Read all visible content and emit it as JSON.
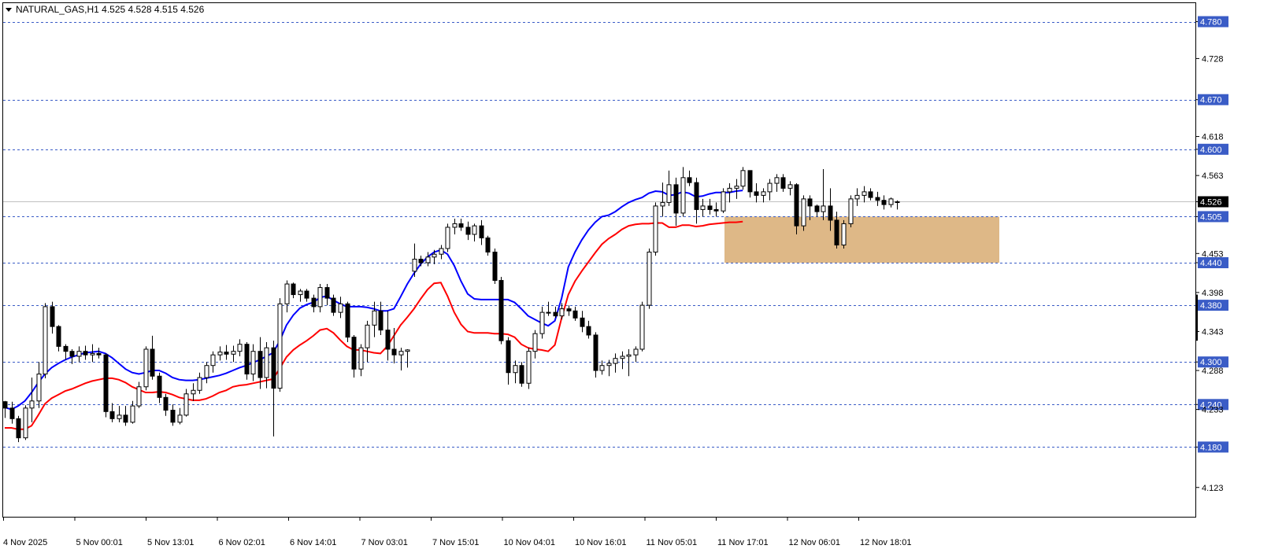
{
  "header": {
    "title": "NATURAL_GAS,H1  4.525 4.528 4.515 4.526"
  },
  "chart_data": {
    "type": "candlestick",
    "symbol": "NATURAL_GAS",
    "timeframe": "H1",
    "ohlc_header": [
      4.525,
      4.528,
      4.515,
      4.526
    ],
    "ylim": [
      4.095,
      4.805
    ],
    "y_ticks": [
      4.78,
      4.728,
      4.67,
      4.618,
      4.6,
      4.563,
      4.526,
      4.505,
      4.453,
      4.44,
      4.398,
      4.38,
      4.343,
      4.3,
      4.288,
      4.24,
      4.233,
      4.18,
      4.123
    ],
    "y_tick_labels": [
      "4.780",
      "4.728",
      "4.670",
      "4.618",
      "4.600",
      "4.563",
      "4.526",
      "4.505",
      "4.453",
      "4.440",
      "4.398",
      "4.380",
      "4.343",
      "4.300",
      "4.288",
      "4.240",
      "4.233",
      "4.180",
      "4.123"
    ],
    "x_tick_labels": [
      "4 Nov 2025",
      "5 Nov 00:01",
      "5 Nov 13:01",
      "6 Nov 02:01",
      "6 Nov 14:01",
      "7 Nov 03:01",
      "7 Nov 15:01",
      "10 Nov 04:01",
      "10 Nov 16:01",
      "11 Nov 05:01",
      "11 Nov 17:01",
      "12 Nov 06:01",
      "12 Nov 18:01"
    ],
    "horizontal_levels": [
      {
        "value": 4.78,
        "label": "4.780"
      },
      {
        "value": 4.67,
        "label": "4.670"
      },
      {
        "value": 4.6,
        "label": "4.600"
      },
      {
        "value": 4.505,
        "label": "4.505"
      },
      {
        "value": 4.44,
        "label": "4.440"
      },
      {
        "value": 4.38,
        "label": "4.380"
      },
      {
        "value": 4.3,
        "label": "4.300"
      },
      {
        "value": 4.24,
        "label": "4.240"
      },
      {
        "value": 4.18,
        "label": "4.180"
      }
    ],
    "current_price": {
      "value": 4.526,
      "label": "4.526"
    },
    "zone": {
      "from": 4.44,
      "to": 4.505,
      "color": "#deb887"
    },
    "ma_series": [
      {
        "color": "#0000ff",
        "values": [
          4.236,
          4.233,
          4.238,
          4.245,
          4.257,
          4.271,
          4.283,
          4.292,
          4.298,
          4.303,
          4.307,
          4.31,
          4.313,
          4.314,
          4.315,
          4.312,
          4.306,
          4.298,
          4.29,
          4.285,
          4.283,
          4.285,
          4.288,
          4.288,
          4.284,
          4.278,
          4.275,
          4.274,
          4.274,
          4.275,
          4.277,
          4.279,
          4.281,
          4.284,
          4.288,
          4.292,
          4.295,
          4.299,
          4.303,
          4.308,
          4.313,
          4.33,
          4.352,
          4.366,
          4.376,
          4.381,
          4.384,
          4.391,
          4.393,
          4.387,
          4.382,
          4.378,
          4.378,
          4.378,
          4.377,
          4.375,
          4.372,
          4.372,
          4.375,
          4.392,
          4.41,
          4.425,
          4.438,
          4.448,
          4.455,
          4.458,
          4.452,
          4.436,
          4.414,
          4.396,
          4.389,
          4.388,
          4.388,
          4.388,
          4.388,
          4.388,
          4.384,
          4.375,
          4.365,
          4.36,
          4.355,
          4.351,
          4.358,
          4.39,
          4.434,
          4.455,
          4.472,
          4.486,
          4.497,
          4.505,
          4.507,
          4.512,
          4.519,
          4.525,
          4.529,
          4.532,
          4.538,
          4.541,
          4.54,
          4.535,
          4.536,
          4.54,
          4.538,
          4.533,
          4.534,
          4.537,
          4.539,
          4.539,
          4.539,
          4.541,
          4.542
        ]
      },
      {
        "color": "#ff0000",
        "values": [
          4.207,
          4.207,
          4.205,
          4.205,
          4.21,
          4.225,
          4.241,
          4.249,
          4.254,
          4.259,
          4.262,
          4.266,
          4.27,
          4.273,
          4.275,
          4.277,
          4.277,
          4.275,
          4.271,
          4.265,
          4.261,
          4.257,
          4.257,
          4.258,
          4.257,
          4.254,
          4.25,
          4.248,
          4.246,
          4.246,
          4.248,
          4.252,
          4.257,
          4.26,
          4.265,
          4.267,
          4.268,
          4.27,
          4.272,
          4.274,
          4.276,
          4.291,
          4.307,
          4.317,
          4.324,
          4.33,
          4.337,
          4.345,
          4.347,
          4.341,
          4.331,
          4.322,
          4.317,
          4.317,
          4.315,
          4.313,
          4.312,
          4.322,
          4.337,
          4.352,
          4.363,
          4.375,
          4.389,
          4.402,
          4.411,
          4.412,
          4.393,
          4.37,
          4.353,
          4.343,
          4.341,
          4.341,
          4.341,
          4.34,
          4.34,
          4.339,
          4.335,
          4.325,
          4.32,
          4.318,
          4.317,
          4.315,
          4.324,
          4.362,
          4.395,
          4.414,
          4.428,
          4.441,
          4.454,
          4.466,
          4.474,
          4.48,
          4.487,
          4.492,
          4.494,
          4.495,
          4.495,
          4.496,
          4.496,
          4.49,
          4.49,
          4.493,
          4.493,
          4.491,
          4.492,
          4.494,
          4.495,
          4.496,
          4.497,
          4.497,
          4.498
        ]
      }
    ],
    "candles": [
      [
        4.244,
        4.245,
        4.221,
        4.235
      ],
      [
        4.235,
        4.244,
        4.213,
        4.22
      ],
      [
        4.22,
        4.224,
        4.187,
        4.193
      ],
      [
        4.193,
        4.239,
        4.19,
        4.235
      ],
      [
        4.235,
        4.278,
        4.215,
        4.245
      ],
      [
        4.245,
        4.3,
        4.235,
        4.283
      ],
      [
        4.283,
        4.383,
        4.277,
        4.378
      ],
      [
        4.378,
        4.385,
        4.34,
        4.35
      ],
      [
        4.35,
        4.352,
        4.315,
        4.322
      ],
      [
        4.322,
        4.325,
        4.303,
        4.315
      ],
      [
        4.315,
        4.318,
        4.297,
        4.308
      ],
      [
        4.308,
        4.322,
        4.3,
        4.315
      ],
      [
        4.315,
        4.323,
        4.303,
        4.31
      ],
      [
        4.31,
        4.325,
        4.3,
        4.312
      ],
      [
        4.312,
        4.32,
        4.305,
        4.31
      ],
      [
        4.31,
        4.312,
        4.222,
        4.23
      ],
      [
        4.23,
        4.242,
        4.215,
        4.22
      ],
      [
        4.22,
        4.238,
        4.215,
        4.225
      ],
      [
        4.225,
        4.238,
        4.21,
        4.215
      ],
      [
        4.215,
        4.245,
        4.213,
        4.238
      ],
      [
        4.238,
        4.272,
        4.235,
        4.265
      ],
      [
        4.265,
        4.322,
        4.26,
        4.318
      ],
      [
        4.318,
        4.337,
        4.275,
        4.28
      ],
      [
        4.28,
        4.285,
        4.242,
        4.25
      ],
      [
        4.25,
        4.255,
        4.224,
        4.232
      ],
      [
        4.232,
        4.24,
        4.21,
        4.215
      ],
      [
        4.215,
        4.235,
        4.212,
        4.225
      ],
      [
        4.225,
        4.262,
        4.223,
        4.255
      ],
      [
        4.255,
        4.27,
        4.245,
        4.26
      ],
      [
        4.26,
        4.285,
        4.255,
        4.278
      ],
      [
        4.278,
        4.3,
        4.27,
        4.295
      ],
      [
        4.295,
        4.315,
        4.285,
        4.31
      ],
      [
        4.31,
        4.322,
        4.302,
        4.314
      ],
      [
        4.314,
        4.324,
        4.303,
        4.311
      ],
      [
        4.311,
        4.323,
        4.3,
        4.315
      ],
      [
        4.315,
        4.332,
        4.308,
        4.325
      ],
      [
        4.325,
        4.328,
        4.275,
        4.283
      ],
      [
        4.283,
        4.325,
        4.273,
        4.315
      ],
      [
        4.315,
        4.335,
        4.262,
        4.278
      ],
      [
        4.278,
        4.328,
        4.263,
        4.32
      ],
      [
        4.32,
        4.33,
        4.195,
        4.263
      ],
      [
        4.263,
        4.39,
        4.258,
        4.382
      ],
      [
        4.382,
        4.415,
        4.37,
        4.41
      ],
      [
        4.41,
        4.412,
        4.39,
        4.395
      ],
      [
        4.395,
        4.403,
        4.385,
        4.4
      ],
      [
        4.4,
        4.403,
        4.385,
        4.39
      ],
      [
        4.39,
        4.395,
        4.37,
        4.378
      ],
      [
        4.378,
        4.41,
        4.37,
        4.405
      ],
      [
        4.405,
        4.41,
        4.38,
        4.39
      ],
      [
        4.39,
        4.395,
        4.365,
        4.37
      ],
      [
        4.37,
        4.392,
        4.362,
        4.382
      ],
      [
        4.382,
        4.385,
        4.328,
        4.335
      ],
      [
        4.335,
        4.338,
        4.278,
        4.29
      ],
      [
        4.29,
        4.325,
        4.28,
        4.32
      ],
      [
        4.32,
        4.358,
        4.3,
        4.352
      ],
      [
        4.352,
        4.385,
        4.335,
        4.372
      ],
      [
        4.372,
        4.385,
        4.338,
        4.345
      ],
      [
        4.345,
        4.372,
        4.302,
        4.318
      ],
      [
        4.318,
        4.348,
        4.298,
        4.31
      ],
      [
        4.31,
        4.32,
        4.288,
        4.315
      ],
      [
        4.315,
        4.318,
        4.292,
        4.317
      ],
      [
        4.428,
        4.467,
        4.42,
        4.445
      ],
      [
        4.445,
        4.45,
        4.435,
        4.44
      ],
      [
        4.44,
        4.455,
        4.435,
        4.448
      ],
      [
        4.448,
        4.458,
        4.438,
        4.452
      ],
      [
        4.452,
        4.465,
        4.445,
        4.46
      ],
      [
        4.46,
        4.495,
        4.455,
        4.49
      ],
      [
        4.49,
        4.502,
        4.48,
        4.495
      ],
      [
        4.495,
        4.502,
        4.485,
        4.49
      ],
      [
        4.49,
        4.498,
        4.472,
        4.48
      ],
      [
        4.48,
        4.495,
        4.47,
        4.492
      ],
      [
        4.492,
        4.5,
        4.465,
        4.475
      ],
      [
        4.475,
        4.478,
        4.45,
        4.455
      ],
      [
        4.455,
        4.46,
        4.41,
        4.415
      ],
      [
        4.415,
        4.42,
        4.325,
        4.33
      ],
      [
        4.33,
        4.335,
        4.268,
        4.285
      ],
      [
        4.285,
        4.302,
        4.27,
        4.295
      ],
      [
        4.295,
        4.3,
        4.265,
        4.27
      ],
      [
        4.27,
        4.32,
        4.262,
        4.315
      ],
      [
        4.315,
        4.345,
        4.305,
        4.34
      ],
      [
        4.34,
        4.378,
        4.333,
        4.37
      ],
      [
        4.37,
        4.385,
        4.365,
        4.37
      ],
      [
        4.37,
        4.378,
        4.362,
        4.365
      ],
      [
        4.365,
        4.383,
        4.36,
        4.375
      ],
      [
        4.375,
        4.38,
        4.365,
        4.372
      ],
      [
        4.372,
        4.378,
        4.358,
        4.362
      ],
      [
        4.362,
        4.372,
        4.342,
        4.35
      ],
      [
        4.35,
        4.358,
        4.333,
        4.338
      ],
      [
        4.338,
        4.342,
        4.278,
        4.288
      ],
      [
        4.288,
        4.302,
        4.282,
        4.295
      ],
      [
        4.295,
        4.303,
        4.28,
        4.298
      ],
      [
        4.298,
        4.312,
        4.285,
        4.305
      ],
      [
        4.305,
        4.315,
        4.29,
        4.308
      ],
      [
        4.308,
        4.318,
        4.28,
        4.31
      ],
      [
        4.31,
        4.322,
        4.3,
        4.318
      ],
      [
        4.318,
        4.385,
        4.315,
        4.38
      ],
      [
        4.38,
        4.46,
        4.375,
        4.455
      ],
      [
        4.455,
        4.525,
        4.45,
        4.52
      ],
      [
        4.52,
        4.553,
        4.505,
        4.525
      ],
      [
        4.525,
        4.57,
        4.52,
        4.55
      ],
      [
        4.55,
        4.56,
        4.492,
        4.51
      ],
      [
        4.51,
        4.575,
        4.505,
        4.56
      ],
      [
        4.56,
        4.57,
        4.548,
        4.553
      ],
      [
        4.553,
        4.56,
        4.495,
        4.515
      ],
      [
        4.515,
        4.53,
        4.505,
        4.52
      ],
      [
        4.52,
        4.53,
        4.508,
        4.515
      ],
      [
        4.515,
        4.525,
        4.505,
        4.513
      ],
      [
        4.513,
        4.545,
        4.51,
        4.54
      ],
      [
        4.54,
        4.552,
        4.525,
        4.545
      ],
      [
        4.545,
        4.558,
        4.53,
        4.548
      ],
      [
        4.548,
        4.575,
        4.543,
        4.57
      ],
      [
        4.57,
        4.57,
        4.532,
        4.54
      ],
      [
        4.54,
        4.552,
        4.525,
        4.535
      ],
      [
        4.535,
        4.545,
        4.525,
        4.54
      ],
      [
        4.54,
        4.558,
        4.528,
        4.552
      ],
      [
        4.552,
        4.565,
        4.54,
        4.56
      ],
      [
        4.56,
        4.565,
        4.54,
        4.545
      ],
      [
        4.545,
        4.555,
        4.535,
        4.55
      ],
      [
        4.55,
        4.552,
        4.48,
        4.492
      ],
      [
        4.492,
        4.535,
        4.485,
        4.53
      ],
      [
        4.53,
        4.535,
        4.5,
        4.52
      ],
      [
        4.52,
        4.522,
        4.505,
        4.512
      ],
      [
        4.512,
        4.572,
        4.5,
        4.52
      ],
      [
        4.52,
        4.545,
        4.485,
        4.5
      ],
      [
        4.5,
        4.512,
        4.46,
        4.465
      ],
      [
        4.465,
        4.5,
        4.46,
        4.495
      ],
      [
        4.495,
        4.535,
        4.49,
        4.53
      ],
      [
        4.53,
        4.545,
        4.52,
        4.535
      ],
      [
        4.535,
        4.548,
        4.525,
        4.54
      ],
      [
        4.54,
        4.545,
        4.528,
        4.532
      ],
      [
        4.532,
        4.54,
        4.52,
        4.528
      ],
      [
        4.528,
        4.535,
        4.515,
        4.522
      ],
      [
        4.522,
        4.532,
        4.518,
        4.53
      ],
      [
        4.525,
        4.528,
        4.515,
        4.526
      ]
    ]
  }
}
